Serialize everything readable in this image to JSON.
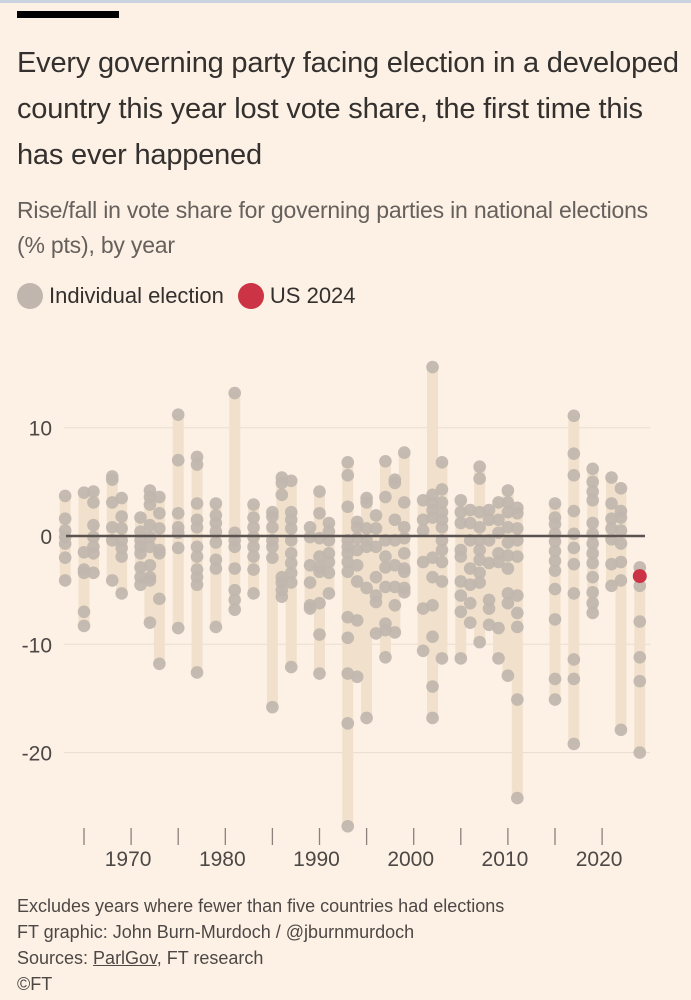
{
  "title": "Every governing party facing election in a developed country this year lost vote share, the first time this has ever happened",
  "subtitle": "Rise/fall in vote share for governing parties in national elections (% pts), by year",
  "legend": [
    {
      "label": "Individual election",
      "color": "#c0b6ae"
    },
    {
      "label": "US 2024",
      "color": "#cc3344"
    }
  ],
  "footer": {
    "note": "Excludes years where fewer than five countries had elections",
    "credit": "FT graphic: John Burn-Murdoch / @jburnmurdoch",
    "sources_prefix": "Sources: ",
    "sources_link": "ParlGov",
    "sources_suffix": ", FT research",
    "copyright": "©FT"
  },
  "colors": {
    "background": "#fdf1e6",
    "dot": "#c0b6ae",
    "range_bar": "#f1e0cb",
    "highlight": "#cc3344",
    "zero_line": "#5a5350",
    "gridline": "#e9dccf"
  },
  "chart_data": {
    "type": "scatter",
    "title": "Rise/fall in vote share for governing parties in national elections (% pts), by year",
    "xlabel": "",
    "ylabel": "% pts",
    "xlim": [
      1963,
      2024
    ],
    "ylim": [
      -27,
      16
    ],
    "x_ticks": [
      1965,
      1970,
      1975,
      1980,
      1985,
      1990,
      1995,
      2000,
      2005,
      2010,
      2015,
      2020
    ],
    "x_tick_labels": [
      "1970",
      "1980",
      "1990",
      "2000",
      "2010",
      "2020"
    ],
    "y_ticks": [
      10,
      0,
      -10,
      -20
    ],
    "y_tick_labels": [
      "10",
      "0",
      "-10",
      "-20"
    ],
    "grid": true,
    "legend_position": "top-left",
    "series": [
      {
        "name": "Individual election",
        "points": [
          {
            "year": 1963,
            "values": [
              3.7,
              1.6,
              0.5,
              -0.1,
              -0.7,
              -2.0,
              -4.1
            ]
          },
          {
            "year": 1965,
            "values": [
              4.0,
              -1.5,
              -3.1,
              -3.4,
              -7.0,
              -8.3
            ]
          },
          {
            "year": 1966,
            "values": [
              4.1,
              3.1,
              1.0,
              -0.1,
              -1.0,
              -1.6,
              -3.4
            ]
          },
          {
            "year": 1968,
            "values": [
              5.5,
              5.2,
              3.1,
              0.8,
              -0.4,
              -4.1
            ]
          },
          {
            "year": 1969,
            "values": [
              3.5,
              1.8,
              0.7,
              -0.4,
              -1.1,
              -1.9,
              -5.3
            ]
          },
          {
            "year": 1971,
            "values": [
              1.7,
              0.4,
              -0.4,
              -1.0,
              -1.6,
              -2.9,
              -3.8,
              -4.5
            ]
          },
          {
            "year": 1972,
            "values": [
              4.2,
              3.6,
              2.9,
              1.0,
              -0.1,
              -1.0,
              -2.7,
              -3.8,
              -4.1,
              -8.0
            ]
          },
          {
            "year": 1973,
            "values": [
              3.6,
              2.1,
              0.7,
              -1.3,
              -1.6,
              -5.8,
              -11.8
            ]
          },
          {
            "year": 1975,
            "values": [
              11.2,
              7.0,
              2.1,
              0.8,
              0.3,
              -1.1,
              -8.5
            ]
          },
          {
            "year": 1977,
            "values": [
              7.3,
              6.6,
              3.0,
              1.5,
              0.8,
              -1.0,
              -1.9,
              -3.1,
              -3.8,
              -4.5,
              -12.6
            ]
          },
          {
            "year": 1979,
            "values": [
              3.0,
              1.9,
              1.2,
              0.4,
              -0.6,
              -2.2,
              -3.0,
              -8.4
            ]
          },
          {
            "year": 1981,
            "values": [
              13.2,
              0.3,
              -0.4,
              -1.0,
              -3.0,
              -5.0,
              -5.9,
              -6.8
            ]
          },
          {
            "year": 1983,
            "values": [
              2.9,
              1.7,
              0.8,
              -0.1,
              -1.0,
              -1.9,
              -3.1,
              -5.3
            ]
          },
          {
            "year": 1985,
            "values": [
              2.2,
              1.8,
              0.8,
              -0.4,
              -1.0,
              -2.0,
              -15.8
            ]
          },
          {
            "year": 1986,
            "values": [
              5.4,
              4.9,
              3.8,
              -3.8,
              -4.3,
              -5.0,
              -5.6
            ]
          },
          {
            "year": 1987,
            "values": [
              5.1,
              2.2,
              1.5,
              0.7,
              -0.4,
              -1.6,
              -2.5,
              -3.4,
              -4.3,
              -12.1
            ]
          },
          {
            "year": 1989,
            "values": [
              0.8,
              -0.1,
              -2.7,
              -4.3,
              -6.4,
              -6.7
            ]
          },
          {
            "year": 1990,
            "values": [
              4.1,
              2.1,
              -0.2,
              -1.9,
              -2.9,
              -3.3,
              -6.2,
              -9.1,
              -12.7
            ]
          },
          {
            "year": 1991,
            "values": [
              1.2,
              0.4,
              -0.4,
              -1.6,
              -2.4,
              -3.4,
              -5.3
            ]
          },
          {
            "year": 1993,
            "values": [
              6.8,
              5.6,
              2.7,
              -0.4,
              -1.0,
              -1.6,
              -2.4,
              -3.3,
              -7.5,
              -9.4,
              -12.7,
              -17.3,
              -26.8
            ]
          },
          {
            "year": 1994,
            "values": [
              1.3,
              0.8,
              -0.2,
              -1.3,
              -2.7,
              -4.2,
              -7.8,
              -13.0
            ]
          },
          {
            "year": 1995,
            "values": [
              3.5,
              3.1,
              0.7,
              -0.4,
              -1.0,
              -4.8,
              -16.8
            ]
          },
          {
            "year": 1996,
            "values": [
              1.9,
              0.7,
              -1.0,
              -3.8,
              -5.5,
              -6.1,
              -9.0
            ]
          },
          {
            "year": 1997,
            "values": [
              6.9,
              3.6,
              -0.4,
              -1.9,
              -2.9,
              -4.7,
              -8.1,
              -8.7,
              -11.2
            ]
          },
          {
            "year": 1998,
            "values": [
              5.2,
              4.9,
              1.5,
              -0.4,
              -2.7,
              -4.7,
              -6.4,
              -8.9
            ]
          },
          {
            "year": 1999,
            "values": [
              7.7,
              3.1,
              0.8,
              -0.2,
              -1.6,
              -3.0,
              -3.3,
              -4.8,
              -5.2
            ]
          },
          {
            "year": 2001,
            "values": [
              3.3,
              1.5,
              0.5,
              -2.4,
              -6.7,
              -10.6
            ]
          },
          {
            "year": 2002,
            "values": [
              15.6,
              3.8,
              3.0,
              2.4,
              1.7,
              -2.0,
              -3.8,
              -6.4,
              -9.3,
              -13.9,
              -16.8
            ]
          },
          {
            "year": 2003,
            "values": [
              6.8,
              4.3,
              3.1,
              2.2,
              1.5,
              0.8,
              -0.4,
              -1.3,
              -2.4,
              -4.2,
              -11.3
            ]
          },
          {
            "year": 2005,
            "values": [
              3.3,
              2.2,
              1.2,
              -1.3,
              -1.9,
              -4.2,
              -5.5,
              -7.0,
              -11.3
            ]
          },
          {
            "year": 2006,
            "values": [
              2.4,
              1.2,
              -0.4,
              -3.0,
              -4.5,
              -6.2,
              -8.0
            ]
          },
          {
            "year": 2007,
            "values": [
              6.4,
              5.3,
              2.2,
              0.8,
              -0.4,
              -1.3,
              -2.2,
              -3.4,
              -4.3,
              -9.8
            ]
          },
          {
            "year": 2008,
            "values": [
              2.4,
              1.5,
              -0.4,
              -2.5,
              -5.9,
              -6.7,
              -8.2
            ]
          },
          {
            "year": 2009,
            "values": [
              3.1,
              1.5,
              0.3,
              -1.6,
              -2.4,
              -8.5,
              -11.3
            ]
          },
          {
            "year": 2010,
            "values": [
              4.2,
              3.1,
              2.2,
              0.8,
              -0.6,
              -1.8,
              -3.0,
              -5.3,
              -6.2,
              -12.9
            ]
          },
          {
            "year": 2011,
            "values": [
              2.6,
              2.1,
              0.7,
              -0.4,
              -1.9,
              -5.5,
              -7.1,
              -8.4,
              -15.1,
              -24.2
            ]
          },
          {
            "year": 2015,
            "values": [
              3.0,
              1.7,
              1.1,
              0.2,
              -0.5,
              -1.4,
              -2.3,
              -3.2,
              -4.9,
              -7.7,
              -13.2,
              -15.1
            ]
          },
          {
            "year": 2017,
            "values": [
              11.1,
              7.6,
              5.6,
              2.3,
              0.2,
              -1.1,
              -2.6,
              -5.3,
              -11.4,
              -13.2,
              -19.2
            ]
          },
          {
            "year": 2019,
            "values": [
              6.2,
              5.0,
              4.1,
              3.3,
              1.2,
              0.2,
              -0.7,
              -1.6,
              -2.5,
              -3.8,
              -5.2,
              -6.2,
              -7.1
            ]
          },
          {
            "year": 2021,
            "values": [
              5.4,
              3.0,
              1.6,
              0.7,
              -0.3,
              -2.6,
              -4.6
            ]
          },
          {
            "year": 2022,
            "values": [
              4.4,
              2.3,
              1.7,
              0.5,
              -0.7,
              -2.4,
              -4.1,
              -17.9
            ]
          },
          {
            "year": 2024,
            "values": [
              -2.9,
              -4.6,
              -7.9,
              -11.2,
              -13.4,
              -20.0
            ]
          }
        ]
      },
      {
        "name": "US 2024",
        "points": [
          {
            "year": 2024,
            "values": [
              -3.7
            ]
          }
        ]
      }
    ]
  }
}
